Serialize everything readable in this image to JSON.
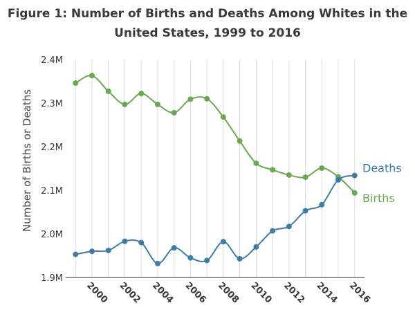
{
  "chart_data": {
    "type": "line",
    "title": "Figure 1: Number of Births and Deaths Among Whites in the United States, 1999 to 2016",
    "ylabel": "Number of Births or Deaths",
    "xlabel": "",
    "x": [
      1999,
      2000,
      2001,
      2002,
      2003,
      2004,
      2005,
      2006,
      2007,
      2008,
      2009,
      2010,
      2011,
      2012,
      2013,
      2014,
      2015,
      2016
    ],
    "xticks": [
      "2000",
      "2002",
      "2004",
      "2006",
      "2008",
      "2010",
      "2012",
      "2014",
      "2016"
    ],
    "yticks": [
      "2.4M",
      "2.3M",
      "2.2M",
      "2.1M",
      "2.0M",
      "1.9M"
    ],
    "ylim": [
      1.9,
      2.4
    ],
    "grid": "vertical",
    "series": [
      {
        "name": "Births",
        "color": "#6aa84f",
        "values": [
          2.346,
          2.363,
          2.327,
          2.297,
          2.322,
          2.297,
          2.278,
          2.309,
          2.31,
          2.268,
          2.213,
          2.162,
          2.147,
          2.135,
          2.13,
          2.151,
          2.131,
          2.094
        ]
      },
      {
        "name": "Deaths",
        "color": "#3e7ca6",
        "values": [
          1.953,
          1.96,
          1.962,
          1.983,
          1.98,
          1.932,
          1.968,
          1.945,
          1.939,
          1.982,
          1.943,
          1.97,
          2.007,
          2.017,
          2.053,
          2.067,
          2.124,
          2.134
        ]
      }
    ]
  }
}
